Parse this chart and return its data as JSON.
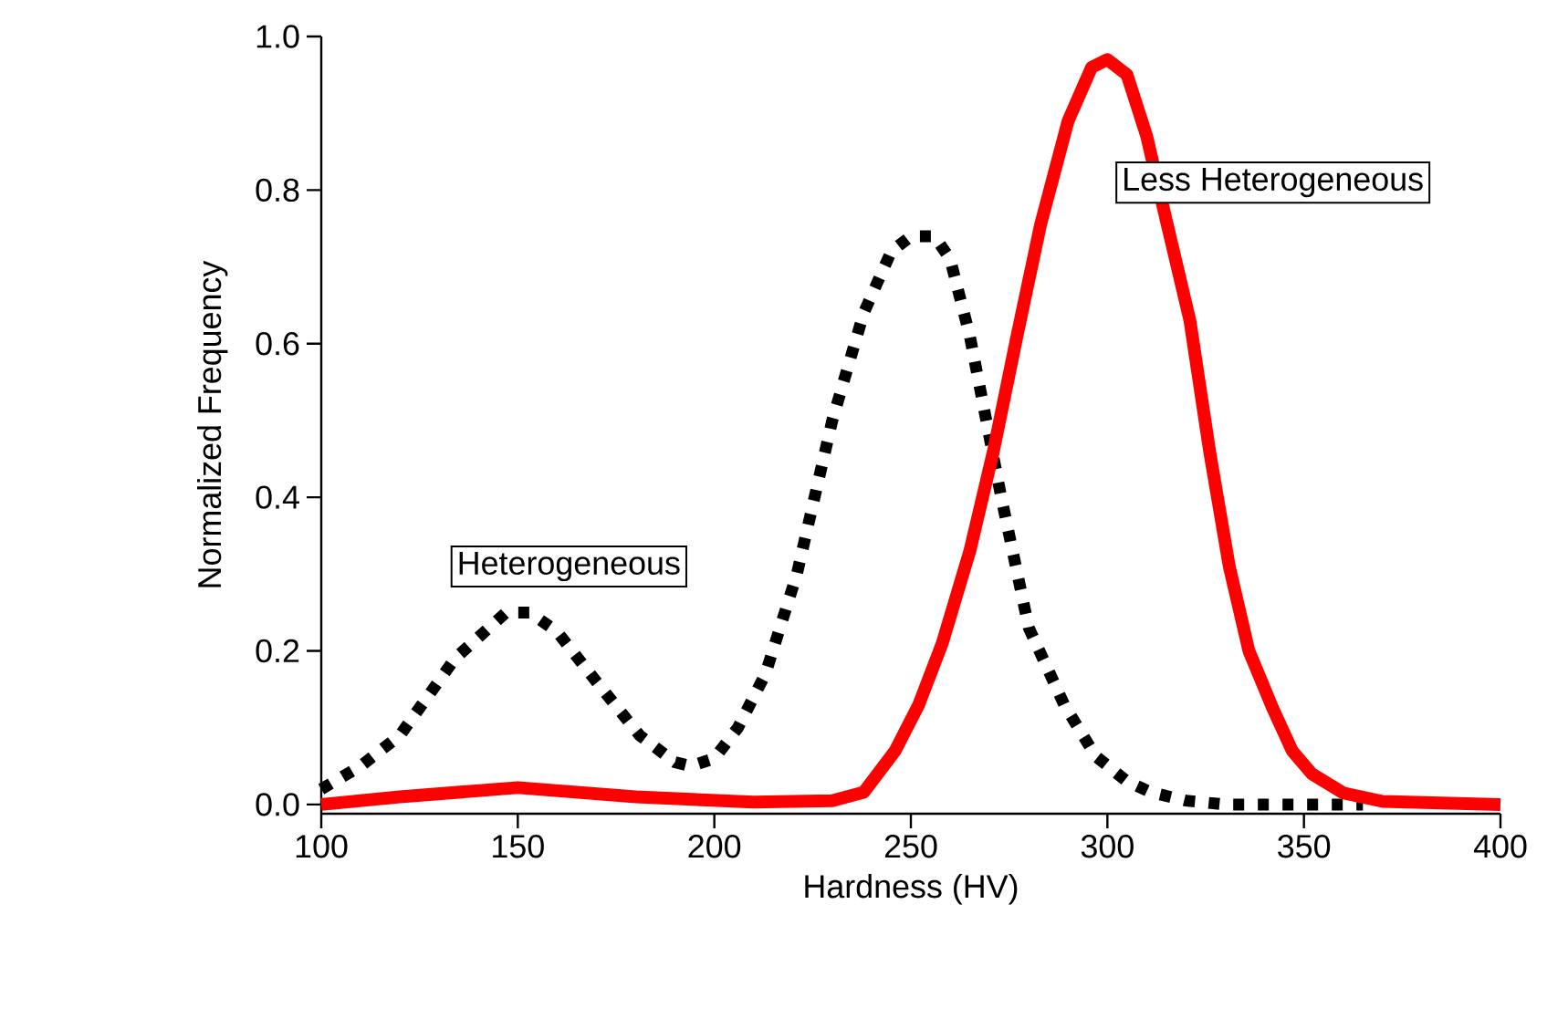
{
  "chart_data": {
    "type": "line",
    "xlabel": "Hardness (HV)",
    "ylabel": "Normalized Frequency",
    "xlim": [
      100,
      400
    ],
    "ylim": [
      -0.012,
      1.0
    ],
    "xticks": [
      100,
      150,
      200,
      250,
      300,
      350,
      400
    ],
    "yticks": [
      {
        "value": 0,
        "label": "0.0"
      },
      {
        "value": 0.2,
        "label": "0.2"
      },
      {
        "value": 0.4,
        "label": "0.4"
      },
      {
        "value": 0.6,
        "label": "0.6"
      },
      {
        "value": 0.8,
        "label": "0.8"
      },
      {
        "value": 1.0,
        "label": "1.0"
      }
    ],
    "grid": false,
    "legend": false,
    "series": [
      {
        "name": "Heterogeneous",
        "color": "#000000",
        "line_style": "dotted",
        "x": [
          100,
          110,
          120,
          134,
          147,
          153,
          160,
          170,
          181,
          190,
          194,
          200,
          206,
          213,
          221,
          230,
          238,
          245,
          250,
          256,
          260,
          265,
          273,
          280,
          289,
          297,
          305,
          311,
          320,
          330,
          365
        ],
        "values": [
          0.02,
          0.05,
          0.09,
          0.19,
          0.25,
          0.25,
          0.225,
          0.16,
          0.09,
          0.055,
          0.05,
          0.06,
          0.1,
          0.17,
          0.3,
          0.5,
          0.64,
          0.72,
          0.74,
          0.74,
          0.71,
          0.61,
          0.4,
          0.23,
          0.13,
          0.063,
          0.03,
          0.016,
          0.005,
          0,
          0
        ]
      },
      {
        "name": "Less Heterogeneous",
        "color": "#ff0000",
        "line_style": "solid",
        "x": [
          100,
          120,
          150,
          180,
          210,
          230,
          238,
          246,
          252,
          258,
          265,
          271,
          277,
          283,
          290,
          296,
          300,
          305,
          310,
          315,
          321,
          326,
          331,
          336,
          342,
          347,
          352,
          360,
          370,
          400
        ],
        "values": [
          0,
          0.01,
          0.022,
          0.01,
          0.003,
          0.005,
          0.016,
          0.07,
          0.13,
          0.21,
          0.33,
          0.46,
          0.61,
          0.755,
          0.89,
          0.96,
          0.97,
          0.95,
          0.87,
          0.76,
          0.63,
          0.46,
          0.31,
          0.2,
          0.126,
          0.07,
          0.04,
          0.015,
          0.004,
          0
        ]
      }
    ]
  }
}
